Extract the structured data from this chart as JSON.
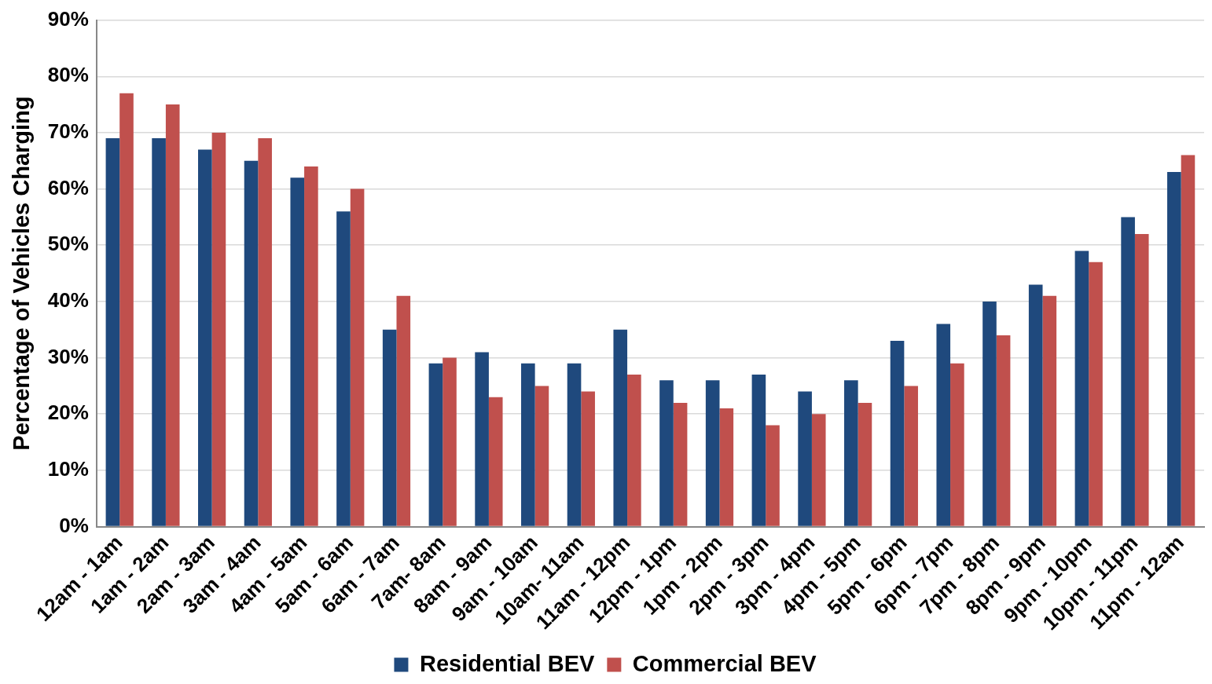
{
  "chart_data": {
    "type": "bar",
    "ylabel": "Percentage of Vehicles Charging",
    "categories": [
      "12am - 1am",
      "1am - 2am",
      "2am - 3am",
      "3am - 4am",
      "4am - 5am",
      "5am - 6am",
      "6am - 7am",
      "7am- 8am",
      "8am - 9am",
      "9am - 10am",
      "10am- 11am",
      "11am - 12pm",
      "12pm - 1pm",
      "1pm - 2pm",
      "2pm - 3pm",
      "3pm - 4pm",
      "4pm - 5pm",
      "5pm - 6pm",
      "6pm - 7pm",
      "7pm - 8pm",
      "8pm - 9pm",
      "9pm - 10pm",
      "10pm - 11pm",
      "11pm - 12am"
    ],
    "series": [
      {
        "name": "Residential BEV",
        "color": "#1f497d",
        "values": [
          69,
          69,
          67,
          65,
          62,
          56,
          35,
          29,
          31,
          29,
          29,
          35,
          26,
          26,
          27,
          24,
          26,
          33,
          36,
          40,
          43,
          49,
          55,
          63
        ]
      },
      {
        "name": "Commercial BEV",
        "color": "#c0504d",
        "values": [
          77,
          75,
          70,
          69,
          64,
          60,
          41,
          30,
          23,
          25,
          24,
          27,
          22,
          21,
          18,
          20,
          22,
          25,
          29,
          34,
          41,
          47,
          52,
          66
        ]
      }
    ],
    "ylim": [
      0,
      90
    ],
    "yticks": [
      {
        "value": 0,
        "label": "0%"
      },
      {
        "value": 10,
        "label": "10%"
      },
      {
        "value": 20,
        "label": "20%"
      },
      {
        "value": 30,
        "label": "30%"
      },
      {
        "value": 40,
        "label": "40%"
      },
      {
        "value": 50,
        "label": "50%"
      },
      {
        "value": 60,
        "label": "60%"
      },
      {
        "value": 70,
        "label": "70%"
      },
      {
        "value": 80,
        "label": "80%"
      },
      {
        "value": 90,
        "label": "90%"
      }
    ],
    "grid": "y",
    "legend": "bottom"
  }
}
